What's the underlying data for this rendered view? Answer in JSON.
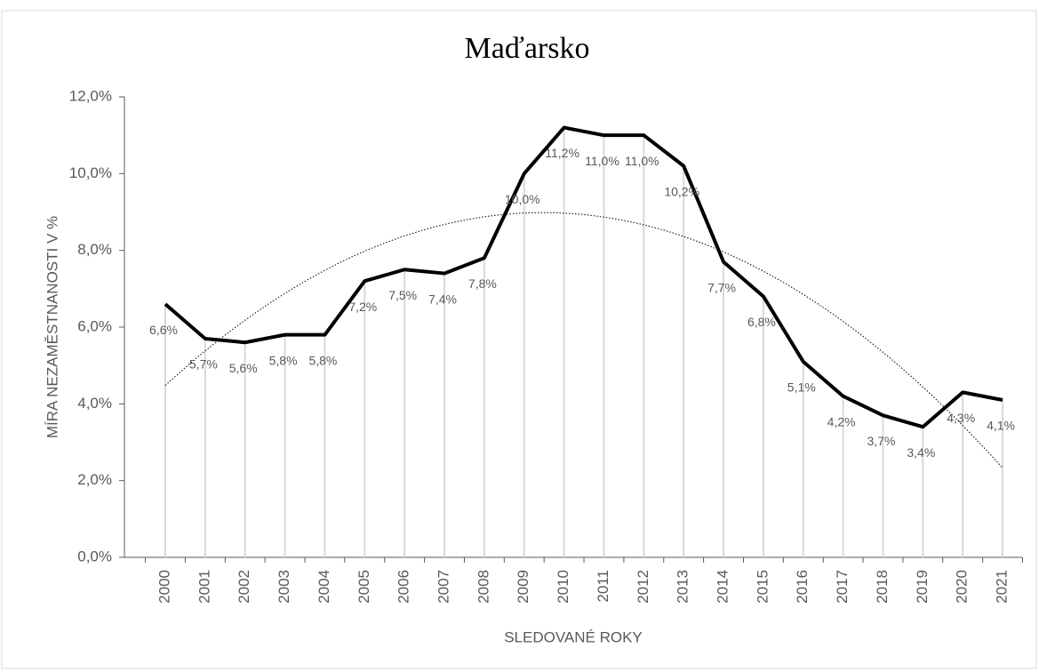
{
  "chart_data": {
    "type": "line",
    "title": "Maďarsko",
    "x_label": "SLEDOVANÉ ROKY",
    "y_label": "MÍRA NEZAMĚSTNANOSTI V %",
    "categories": [
      "2000",
      "2001",
      "2002",
      "2003",
      "2004",
      "2005",
      "2006",
      "2007",
      "2008",
      "2009",
      "2010",
      "2011",
      "2012",
      "2013",
      "2014",
      "2015",
      "2016",
      "2017",
      "2018",
      "2019",
      "2020",
      "2021"
    ],
    "values": [
      6.6,
      5.7,
      5.6,
      5.8,
      5.8,
      7.2,
      7.5,
      7.4,
      7.8,
      10.0,
      11.2,
      11.0,
      11.0,
      10.2,
      7.7,
      6.8,
      5.1,
      4.2,
      3.7,
      3.4,
      4.3,
      4.1
    ],
    "value_labels": [
      "6,6%",
      "5,7%",
      "5,6%",
      "5,8%",
      "5,8%",
      "7,2%",
      "7,5%",
      "7,4%",
      "7,8%",
      "10,0%",
      "11,2%",
      "11,0%",
      "11,0%",
      "10,2%",
      "7,7%",
      "6,8%",
      "5,1%",
      "4,2%",
      "3,7%",
      "3,4%",
      "4,3%",
      "4,1%"
    ],
    "color": "#000000",
    "drop_lines": true,
    "trendline": {
      "type": "polynomial",
      "order": 2
    },
    "ylim": [
      0,
      12
    ],
    "yticks": [
      {
        "value": 0,
        "label": "0,0%"
      },
      {
        "value": 2,
        "label": "2,0%"
      },
      {
        "value": 4,
        "label": "4,0%"
      },
      {
        "value": 6,
        "label": "6,0%"
      },
      {
        "value": 8,
        "label": "8,0%"
      },
      {
        "value": 10,
        "label": "10,0%"
      },
      {
        "value": 12,
        "label": "12,0%"
      }
    ]
  }
}
